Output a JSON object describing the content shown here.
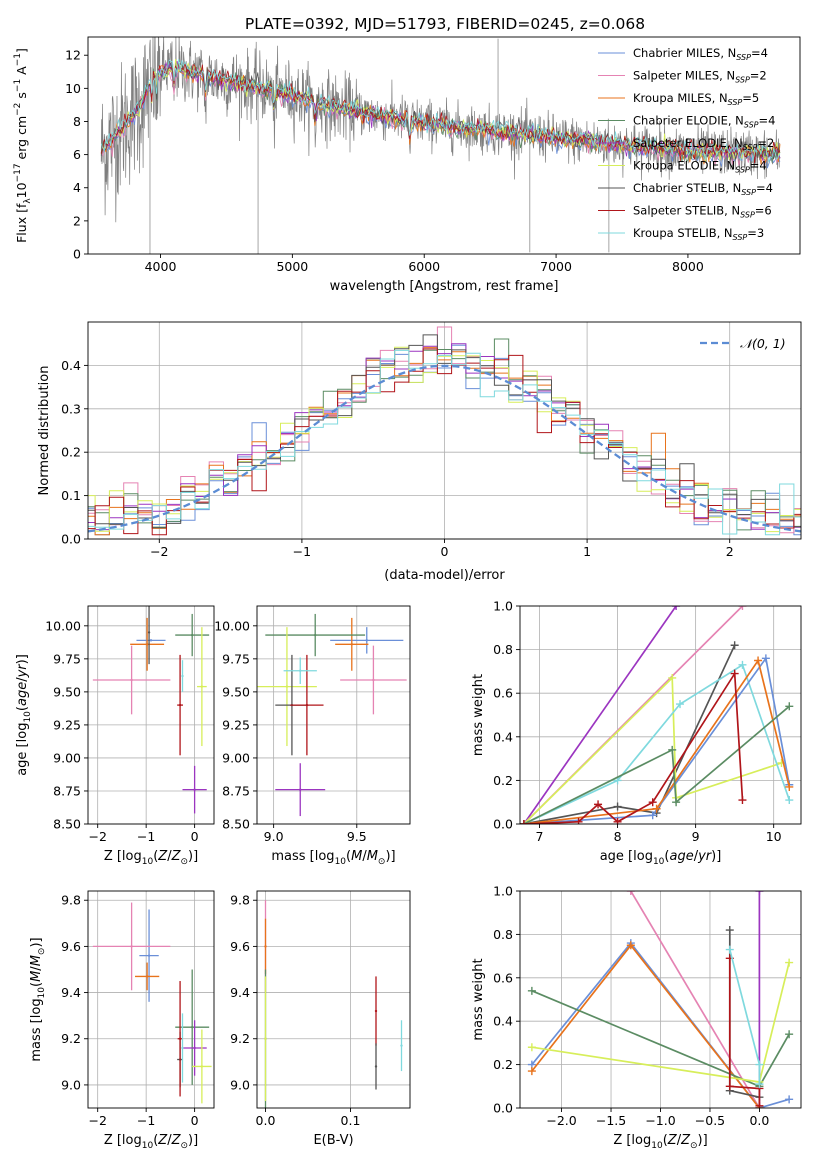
{
  "figure_title": "PLATE=0392, MJD=51793, FIBERID=0245, z=0.068",
  "colors": {
    "chabrier_miles": "#6a8fd8",
    "salpeter_miles": "#e583b3",
    "kroupa_miles": "#e8731c",
    "chabrier_elodie": "#5b8c63",
    "salpeter_elodie": "#9b35c0",
    "kroupa_elodie": "#d7ee5a",
    "chabrier_stelib": "#555555",
    "salpeter_stelib": "#b0151a",
    "kroupa_stelib": "#7fd9de",
    "data_grey": "#7f7f7f",
    "gaussian": "#5b8cd4"
  },
  "chart_data": [
    {
      "id": "spectrum",
      "type": "line",
      "title": "PLATE=0392, MJD=51793, FIBERID=0245, z=0.068",
      "xlabel": "wavelength [Angstrom, rest frame]",
      "ylabel": "Flux [f_λ 10^-17 erg cm^-2 s^-1 A^-1]",
      "xlim": [
        3450,
        8850
      ],
      "ylim": [
        0,
        13.1
      ],
      "xticks": [
        "4000",
        "5000",
        "6000",
        "7000",
        "8000"
      ],
      "yticks": [
        "0",
        "2",
        "4",
        "6",
        "8",
        "10",
        "12"
      ],
      "legend_position": "top-right",
      "legend": [
        {
          "label": "Chabrier MILES, N",
          "sub": "SSP",
          "tail": "=4"
        },
        {
          "label": "Salpeter MILES, N",
          "sub": "SSP",
          "tail": "=2"
        },
        {
          "label": "Kroupa MILES, N",
          "sub": "SSP",
          "tail": "=5"
        },
        {
          "label": "Chabrier ELODIE, N",
          "sub": "SSP",
          "tail": "=4"
        },
        {
          "label": "Salpeter ELODIE, N",
          "sub": "SSP",
          "tail": "=2"
        },
        {
          "label": "Kroupa ELODIE, N",
          "sub": "SSP",
          "tail": "=4"
        },
        {
          "label": "Chabrier STELIB, N",
          "sub": "SSP",
          "tail": "=4"
        },
        {
          "label": "Salpeter STELIB, N",
          "sub": "SSP",
          "tail": "=6"
        },
        {
          "label": "Kroupa STELIB, N",
          "sub": "SSP",
          "tail": "=3"
        }
      ],
      "continuum": [
        [
          3550,
          6.2
        ],
        [
          3700,
          7.5
        ],
        [
          3850,
          9.0
        ],
        [
          3950,
          10.8
        ],
        [
          4100,
          11.3
        ],
        [
          4300,
          10.8
        ],
        [
          4600,
          10.3
        ],
        [
          5000,
          9.6
        ],
        [
          5300,
          8.9
        ],
        [
          5700,
          8.3
        ],
        [
          6200,
          7.7
        ],
        [
          6700,
          7.3
        ],
        [
          7100,
          6.9
        ],
        [
          7500,
          6.6
        ],
        [
          8000,
          6.2
        ],
        [
          8500,
          6.1
        ],
        [
          8700,
          6.0
        ]
      ],
      "absorption_lines": [
        3934,
        3969,
        4102,
        4340,
        4861,
        5175,
        5890
      ],
      "spikes": [
        [
          3920,
          0
        ],
        [
          4740,
          0
        ],
        [
          6800,
          0.1
        ],
        [
          7400,
          0.1
        ],
        [
          6560,
          13
        ]
      ]
    },
    {
      "id": "residuals",
      "type": "histogram",
      "xlabel": "(data-model)/error",
      "ylabel": "Normed distribution",
      "xlim": [
        -2.5,
        2.5
      ],
      "ylim": [
        0,
        0.5
      ],
      "xticks": [
        "−2",
        "−1",
        "0",
        "1",
        "2"
      ],
      "yticks": [
        "0.0",
        "0.1",
        "0.2",
        "0.3",
        "0.4"
      ],
      "grid": true,
      "legend_position": "top-right",
      "legend": [
        {
          "label": "𝒩(0, 1)"
        }
      ],
      "bin_width": 0.1
    },
    {
      "id": "age-vs-Z",
      "type": "scatter",
      "xlabel": "Z [log10(Z/Z⊙)]",
      "ylabel": "age [log10(age/yr)]",
      "xlim": [
        -2.2,
        0.4
      ],
      "ylim": [
        8.5,
        10.15
      ],
      "xticks": [
        "−2",
        "−1",
        "0"
      ],
      "yticks": [
        "8.50",
        "8.75",
        "9.00",
        "9.25",
        "9.50",
        "9.75",
        "10.00"
      ],
      "grid": true,
      "points": [
        {
          "series": "chabrier_miles",
          "x": -0.9,
          "xerr": 0.3,
          "y": 9.89,
          "yerr": 0.0
        },
        {
          "series": "salpeter_miles",
          "x": -1.3,
          "xerr": 0.8,
          "y": 9.59,
          "yerr": 0.26
        },
        {
          "series": "kroupa_miles",
          "x": -0.98,
          "xerr": 0.35,
          "y": 9.86,
          "yerr": 0.2
        },
        {
          "series": "chabrier_elodie",
          "x": -0.05,
          "xerr": 0.35,
          "y": 9.93,
          "yerr": 0.16
        },
        {
          "series": "salpeter_elodie",
          "x": 0.0,
          "xerr": 0.25,
          "y": 8.76,
          "yerr": 0.18
        },
        {
          "series": "kroupa_elodie",
          "x": 0.15,
          "xerr": 0.1,
          "y": 9.54,
          "yerr": 0.45
        },
        {
          "series": "chabrier_stelib",
          "x": -0.94,
          "xerr": 0.02,
          "y": 9.95,
          "yerr": 0.24
        },
        {
          "series": "salpeter_stelib",
          "x": -0.3,
          "xerr": 0.06,
          "y": 9.4,
          "yerr": 0.38
        },
        {
          "series": "kroupa_stelib",
          "x": -0.25,
          "xerr": 0.02,
          "y": 9.62,
          "yerr": 0.12
        }
      ]
    },
    {
      "id": "age-vs-mass",
      "type": "scatter",
      "xlabel": "mass [log10(M/M⊙)]",
      "ylabel": "",
      "xlim": [
        8.9,
        9.82
      ],
      "ylim": [
        8.5,
        10.15
      ],
      "xticks": [
        "9.0",
        "9.5"
      ],
      "yticks": [
        "8.50",
        "8.75",
        "9.00",
        "9.25",
        "9.50",
        "9.75",
        "10.00"
      ],
      "grid": true,
      "points": [
        {
          "series": "chabrier_miles",
          "x": 9.56,
          "xerr": 0.22,
          "y": 9.89,
          "yerr": 0.1
        },
        {
          "series": "salpeter_miles",
          "x": 9.6,
          "xerr": 0.2,
          "y": 9.59,
          "yerr": 0.26
        },
        {
          "series": "kroupa_miles",
          "x": 9.47,
          "xerr": 0.1,
          "y": 9.86,
          "yerr": 0.2
        },
        {
          "series": "chabrier_elodie",
          "x": 9.25,
          "xerr": 0.3,
          "y": 9.93,
          "yerr": 0.16
        },
        {
          "series": "salpeter_elodie",
          "x": 9.16,
          "xerr": 0.15,
          "y": 8.76,
          "yerr": 0.2
        },
        {
          "series": "kroupa_elodie",
          "x": 9.08,
          "xerr": 0.18,
          "y": 9.54,
          "yerr": 0.45
        },
        {
          "series": "chabrier_stelib",
          "x": 9.11,
          "xerr": 0.1,
          "y": 9.4,
          "yerr": 0.38
        },
        {
          "series": "salpeter_stelib",
          "x": 9.2,
          "xerr": 0.1,
          "y": 9.4,
          "yerr": 0.38
        },
        {
          "series": "kroupa_stelib",
          "x": 9.16,
          "xerr": 0.1,
          "y": 9.66,
          "yerr": 0.1
        }
      ]
    },
    {
      "id": "weight-vs-age",
      "type": "line",
      "xlabel": "age [log10(age/yr)]",
      "ylabel": "mass weight",
      "xlim": [
        6.75,
        10.35
      ],
      "ylim": [
        0,
        1.0
      ],
      "xticks": [
        "7",
        "8",
        "9",
        "10"
      ],
      "yticks": [
        "0.0",
        "0.2",
        "0.4",
        "0.6",
        "0.8",
        "1.0"
      ],
      "grid": true,
      "series": [
        {
          "name": "salpeter_elodie",
          "x": [
            6.8,
            8.75
          ],
          "y": [
            0.0,
            1.0
          ]
        },
        {
          "name": "salpeter_miles",
          "x": [
            6.8,
            9.6
          ],
          "y": [
            0.0,
            1.0
          ]
        },
        {
          "name": "chabrier_stelib",
          "x": [
            6.8,
            8.0,
            8.5,
            9.5
          ],
          "y": [
            0.0,
            0.08,
            0.05,
            0.82
          ]
        },
        {
          "name": "kroupa_elodie",
          "x": [
            6.8,
            8.7,
            8.75,
            10.1
          ],
          "y": [
            0.0,
            0.67,
            0.12,
            0.28
          ]
        },
        {
          "name": "kroupa_stelib",
          "x": [
            6.8,
            8.0,
            8.8,
            9.6,
            10.2
          ],
          "y": [
            0.0,
            0.2,
            0.55,
            0.73,
            0.11
          ]
        },
        {
          "name": "chabrier_miles",
          "x": [
            6.8,
            8.45,
            9.9,
            10.2
          ],
          "y": [
            0.0,
            0.04,
            0.76,
            0.18
          ]
        },
        {
          "name": "kroupa_miles",
          "x": [
            6.8,
            8.5,
            9.8,
            10.2
          ],
          "y": [
            0.0,
            0.07,
            0.75,
            0.17
          ]
        },
        {
          "name": "chabrier_elodie",
          "x": [
            6.8,
            8.7,
            8.75,
            10.2
          ],
          "y": [
            0.0,
            0.34,
            0.1,
            0.54
          ]
        },
        {
          "name": "salpeter_stelib",
          "x": [
            6.8,
            7.5,
            7.75,
            8.0,
            8.45,
            9.5,
            9.6
          ],
          "y": [
            0.0,
            0.01,
            0.09,
            0.01,
            0.1,
            0.69,
            0.11
          ]
        }
      ]
    },
    {
      "id": "mass-vs-Z",
      "type": "scatter",
      "xlabel": "Z [log10(Z/Z⊙)]",
      "ylabel": "mass [log10(M/M⊙)]",
      "xlim": [
        -2.2,
        0.4
      ],
      "ylim": [
        8.9,
        9.84
      ],
      "xticks": [
        "−2",
        "−1",
        "0"
      ],
      "yticks": [
        "9.0",
        "9.2",
        "9.4",
        "9.6",
        "9.8"
      ],
      "grid": true,
      "points": [
        {
          "series": "chabrier_miles",
          "x": -0.94,
          "xerr": 0.2,
          "y": 9.56,
          "yerr": 0.2
        },
        {
          "series": "salpeter_miles",
          "x": -1.3,
          "xerr": 0.8,
          "y": 9.6,
          "yerr": 0.19
        },
        {
          "series": "kroupa_miles",
          "x": -0.98,
          "xerr": 0.25,
          "y": 9.47,
          "yerr": 0.06
        },
        {
          "series": "chabrier_elodie",
          "x": -0.05,
          "xerr": 0.35,
          "y": 9.25,
          "yerr": 0.25
        },
        {
          "series": "salpeter_elodie",
          "x": 0.0,
          "xerr": 0.25,
          "y": 9.16,
          "yerr": 0.12
        },
        {
          "series": "kroupa_elodie",
          "x": 0.15,
          "xerr": 0.2,
          "y": 9.08,
          "yerr": 0.16
        },
        {
          "series": "chabrier_stelib",
          "x": -0.3,
          "xerr": 0.06,
          "y": 9.11,
          "yerr": 0.12
        },
        {
          "series": "salpeter_stelib",
          "x": -0.3,
          "xerr": 0.05,
          "y": 9.2,
          "yerr": 0.25
        },
        {
          "series": "kroupa_stelib",
          "x": -0.25,
          "xerr": 0.02,
          "y": 9.16,
          "yerr": 0.15
        }
      ]
    },
    {
      "id": "mass-vs-ebv",
      "type": "scatter",
      "xlabel": "E(B-V)",
      "ylabel": "",
      "xlim": [
        -0.01,
        0.17
      ],
      "ylim": [
        8.9,
        9.84
      ],
      "xticks": [
        "0.0",
        "0.1"
      ],
      "yticks": [
        "9.0",
        "9.2",
        "9.4",
        "9.6",
        "9.8"
      ],
      "grid": true,
      "points": [
        {
          "series": "salpeter_miles",
          "x": 0.0,
          "y": 9.6,
          "yerr": 0.2
        },
        {
          "series": "kroupa_miles",
          "x": 0.0,
          "y": 9.6,
          "yerr": 0.12
        },
        {
          "series": "chabrier_elodie",
          "x": 0.0,
          "y": 9.2,
          "yerr": 0.3
        },
        {
          "series": "kroupa_elodie",
          "x": 0.0,
          "y": 9.2,
          "yerr": 0.27
        },
        {
          "series": "salpeter_stelib",
          "x": 0.13,
          "y": 9.32,
          "yerr": 0.15
        },
        {
          "series": "chabrier_stelib",
          "x": 0.13,
          "y": 9.08,
          "yerr": 0.1
        },
        {
          "series": "kroupa_stelib",
          "x": 0.16,
          "y": 9.17,
          "yerr": 0.11
        }
      ]
    },
    {
      "id": "weight-vs-Z",
      "type": "line",
      "xlabel": "Z [log10(Z/Z⊙)]",
      "ylabel": "mass weight",
      "xlim": [
        -2.42,
        0.42
      ],
      "ylim": [
        0,
        1.0
      ],
      "xticks": [
        "−2.0",
        "−1.5",
        "−1.0",
        "−0.5",
        "0.0"
      ],
      "yticks": [
        "0.0",
        "0.2",
        "0.4",
        "0.6",
        "0.8",
        "1.0"
      ],
      "grid": true,
      "series": [
        {
          "name": "salpeter_miles",
          "x": [
            -1.3,
            0.0
          ],
          "y": [
            1.0,
            0.0
          ]
        },
        {
          "name": "salpeter_elodie",
          "x": [
            0.0,
            0.0
          ],
          "y": [
            1.0,
            0.0
          ]
        },
        {
          "name": "chabrier_miles",
          "x": [
            -2.3,
            -1.3,
            0.0,
            0.3
          ],
          "y": [
            0.2,
            0.76,
            0.0,
            0.04
          ]
        },
        {
          "name": "kroupa_miles",
          "x": [
            -2.3,
            -1.3,
            0.0
          ],
          "y": [
            0.17,
            0.75,
            0.0
          ]
        },
        {
          "name": "chabrier_elodie",
          "x": [
            -2.3,
            0.0,
            0.3
          ],
          "y": [
            0.54,
            0.1,
            0.34
          ]
        },
        {
          "name": "kroupa_elodie",
          "x": [
            -2.3,
            0.0,
            0.3
          ],
          "y": [
            0.28,
            0.12,
            0.67
          ]
        },
        {
          "name": "chabrier_stelib",
          "x": [
            -0.3,
            -0.3,
            0.0
          ],
          "y": [
            0.82,
            0.08,
            0.05
          ]
        },
        {
          "name": "salpeter_stelib",
          "x": [
            -0.3,
            -0.3,
            0.0,
            0.0
          ],
          "y": [
            0.69,
            0.1,
            0.09,
            0.01
          ]
        },
        {
          "name": "kroupa_stelib",
          "x": [
            -0.3,
            0.0,
            0.0
          ],
          "y": [
            0.73,
            0.2,
            0.11
          ]
        }
      ]
    }
  ]
}
